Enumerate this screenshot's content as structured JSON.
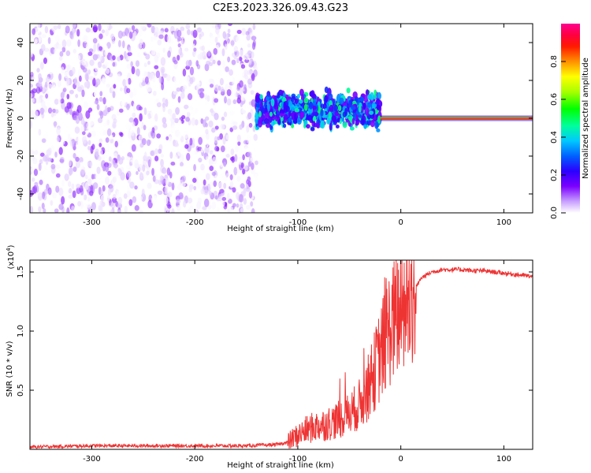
{
  "title": "C2E3.2023.326.09.43.G23",
  "chart_data": [
    {
      "type": "heatmap",
      "xlabel": "Height of straight line (km)",
      "ylabel": "Frequency (Hz)",
      "xlim": [
        -360,
        128
      ],
      "ylim": [
        -50,
        50
      ],
      "xticks": [
        -300,
        -200,
        -100,
        0,
        100
      ],
      "yticks": [
        -40,
        -20,
        0,
        20,
        40
      ],
      "colorbar": {
        "label": "Normalized spectral amplitude",
        "range": [
          0.0,
          1.0
        ],
        "ticks": [
          0.0,
          0.2,
          0.4,
          0.6,
          0.8
        ],
        "colormap": [
          "#ffffff",
          "#c8a0ff",
          "#7b00ff",
          "#2b00ff",
          "#0060ff",
          "#00c8ff",
          "#00ff9c",
          "#00ff00",
          "#a8ff00",
          "#ffff00",
          "#ff9000",
          "#ff1a00",
          "#ff0040",
          "#ff0090"
        ]
      },
      "regions": [
        {
          "name": "noise",
          "x_range": [
            -360,
            -140
          ],
          "freq_halfwidth": 50,
          "amplitude": [
            0.0,
            0.15
          ]
        },
        {
          "name": "transition",
          "x_range": [
            -140,
            -20
          ],
          "center_freq": 4,
          "freq_halfwidth": 12,
          "amplitude": [
            0.15,
            0.5
          ]
        },
        {
          "name": "tone",
          "x_range": [
            -20,
            128
          ],
          "center_freq": 0,
          "freq_halfwidth": 1.5,
          "amplitude": [
            0.8,
            1.0
          ]
        }
      ],
      "grid": false
    },
    {
      "type": "line",
      "xlabel": "Height of straight line (km)",
      "ylabel": "SNR (10 * v/v)",
      "y_scale_note": "(x10^4)",
      "xlim": [
        -360,
        128
      ],
      "ylim": [
        0,
        1.6
      ],
      "xticks": [
        -300,
        -200,
        -100,
        0,
        100
      ],
      "yticks": [
        0.5,
        1.0,
        1.5
      ],
      "color": "#ee3333",
      "series": [
        {
          "x": [
            -360,
            -300,
            -250,
            -200,
            -150,
            -120,
            -110,
            -100,
            -90,
            -80,
            -70,
            -60,
            -50,
            -40,
            -30,
            -20,
            -10,
            0,
            10,
            20,
            30,
            40,
            50,
            60,
            70,
            80,
            90,
            100,
            110,
            120,
            128
          ],
          "y": [
            0.02,
            0.03,
            0.03,
            0.03,
            0.03,
            0.04,
            0.06,
            0.12,
            0.17,
            0.2,
            0.22,
            0.25,
            0.3,
            0.38,
            0.55,
            0.8,
            1.05,
            1.15,
            1.3,
            1.45,
            1.5,
            1.52,
            1.52,
            1.52,
            1.51,
            1.51,
            1.5,
            1.49,
            1.48,
            1.47,
            1.46
          ]
        }
      ]
    }
  ]
}
